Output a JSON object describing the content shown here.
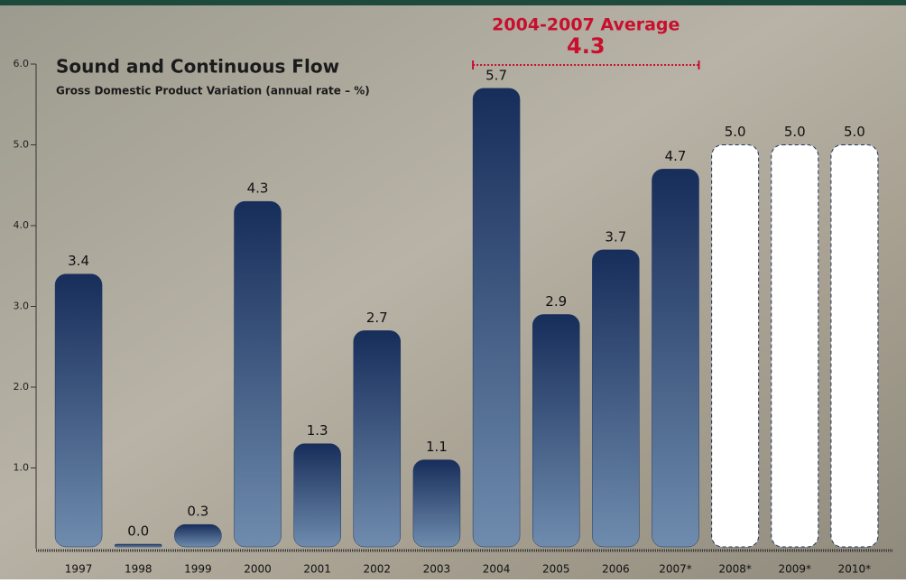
{
  "chart_data": {
    "type": "bar",
    "title": "Sound and Continuous Flow",
    "subtitle": "Gross Domestic Product Variation (annual rate – %)",
    "categories": [
      "1997",
      "1998",
      "1999",
      "2000",
      "2001",
      "2002",
      "2003",
      "2004",
      "2005",
      "2006",
      "2007*",
      "2008*",
      "2009*",
      "2010*"
    ],
    "series": [
      {
        "style": "gradient",
        "color": "#1c3461",
        "values": [
          3.4,
          0.0,
          0.3,
          4.3,
          1.3,
          2.7,
          1.1,
          5.7,
          2.9,
          3.7,
          4.7,
          null,
          null,
          null
        ],
        "value_labels": [
          "3.4",
          "0.0",
          "0.3",
          "4.3",
          "1.3",
          "2.7",
          "1.1",
          "5.7",
          "2.9",
          "3.7",
          "4.7",
          null,
          null,
          null
        ]
      },
      {
        "style": "dashed",
        "color": "#ffffff",
        "values": [
          null,
          null,
          null,
          null,
          null,
          null,
          null,
          null,
          null,
          null,
          null,
          5.0,
          5.0,
          5.0
        ],
        "value_labels": [
          null,
          null,
          null,
          null,
          null,
          null,
          null,
          null,
          null,
          null,
          null,
          "5.0",
          "5.0",
          "5.0"
        ]
      }
    ],
    "ylim": [
      0,
      6
    ],
    "yticks": [
      {
        "value": 1,
        "label": "1.0"
      },
      {
        "value": 2,
        "label": "2.0"
      },
      {
        "value": 3,
        "label": "3.0"
      },
      {
        "value": 4,
        "label": "4.0"
      },
      {
        "value": 5,
        "label": "5.0"
      },
      {
        "value": 6,
        "label": "6.0"
      }
    ],
    "average": {
      "label": "2004-2007 Average",
      "value": 4.3,
      "color": "#c8102e",
      "span": [
        7,
        10
      ]
    }
  }
}
